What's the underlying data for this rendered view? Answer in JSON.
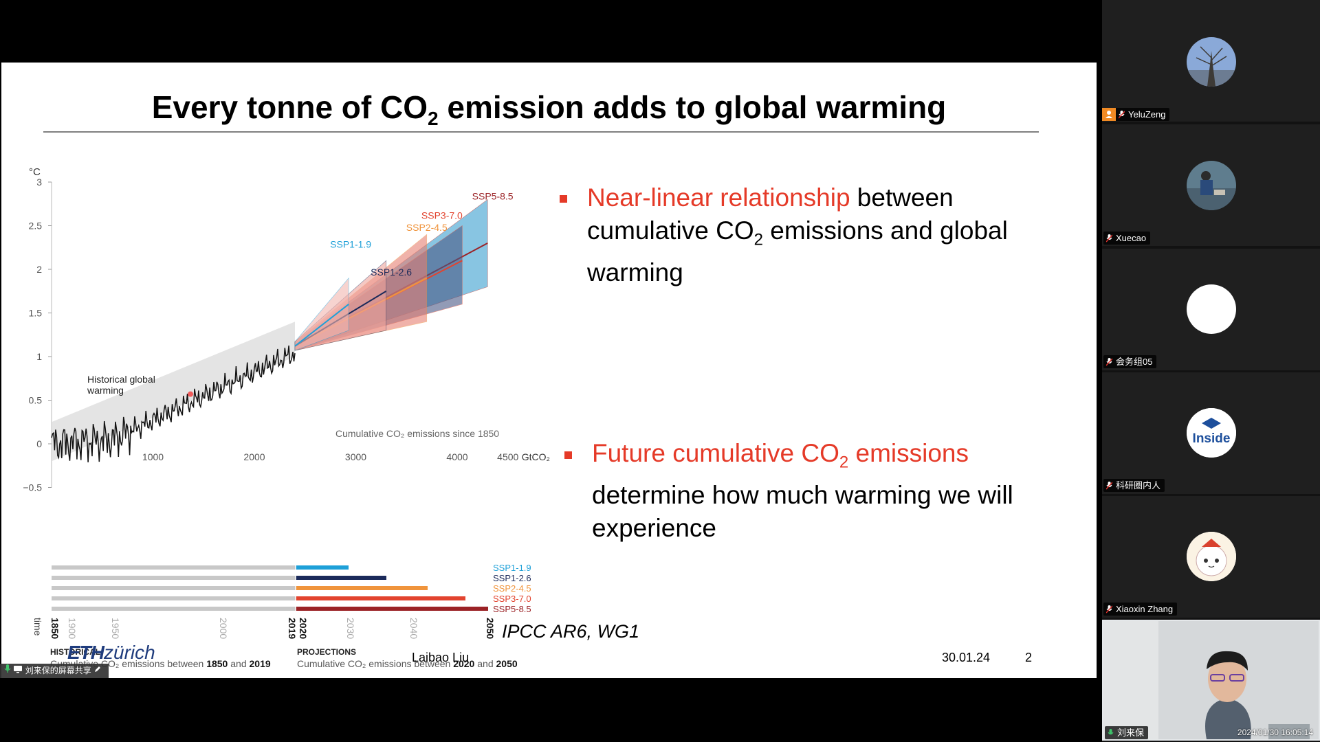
{
  "slide": {
    "title_pre": "Every tonne of CO",
    "title_sub": "2",
    "title_post": " emission adds to global warming",
    "bullet1": {
      "red": "Near-linear relationship",
      "rest1": " between",
      "line2_pre": "cumulative CO",
      "line2_sub": "2",
      "line2_post": " emissions and global",
      "line3": "warming"
    },
    "bullet2": {
      "red_pre": "Future cumulative CO",
      "red_sub": "2",
      "red_post": " emissions",
      "line2": "determine how much warming we will",
      "line3": "experience"
    },
    "citation": "IPCC AR6, WG1",
    "footer": {
      "logo_bold": "ETH",
      "logo_rest": "zürich",
      "author": "Laibao Liu",
      "date": "30.01.24",
      "page": "2"
    }
  },
  "chart_data": {
    "type": "line",
    "ylabel": "°C",
    "xlabel": "GtCO₂",
    "x_caption": "Cumulative CO₂ emissions since 1850",
    "xlim": [
      0,
      4500
    ],
    "ylim": [
      -0.5,
      3
    ],
    "x_ticks": [
      "1000",
      "2000",
      "3000",
      "4000",
      "4500"
    ],
    "y_ticks": [
      "−0.5",
      "0",
      "0.5",
      "1",
      "1.5",
      "2",
      "2.5",
      "3"
    ],
    "historical_label": "Historical global warming",
    "historical_label_l1": "Historical global",
    "historical_label_l2": "warming",
    "series": [
      {
        "name": "SSP1-1.9",
        "color": "#1ea0d8",
        "x_end": 2930,
        "y_end": 1.6,
        "low": 1.3,
        "high": 1.9
      },
      {
        "name": "SSP1-2.6",
        "color": "#1b2a5a",
        "x_end": 3300,
        "y_end": 1.75,
        "low": 1.3,
        "high": 2.1
      },
      {
        "name": "SSP2-4.5",
        "color": "#f0943c",
        "x_end": 3700,
        "y_end": 1.9,
        "low": 1.4,
        "high": 2.4
      },
      {
        "name": "SSP3-7.0",
        "color": "#e2432e",
        "x_end": 4050,
        "y_end": 2.1,
        "low": 1.6,
        "high": 2.5
      },
      {
        "name": "SSP5-8.5",
        "color": "#9b2226",
        "x_end": 4300,
        "y_end": 2.3,
        "low": 1.8,
        "high": 2.8
      }
    ],
    "timeline": {
      "time_label": "time",
      "years": [
        "1850",
        "1900",
        "1950",
        "2000",
        "2019",
        "2020",
        "2030",
        "2040",
        "2050"
      ],
      "historical_title": "HISTORICAL",
      "historical_caption_pre": "Cumulative CO₂ emissions between ",
      "historical_caption_a": "1850",
      "historical_caption_mid": " and ",
      "historical_caption_b": "2019",
      "projections_title": "PROJECTIONS",
      "projections_caption_pre": "Cumulative CO₂ emissions between ",
      "projections_caption_a": "2020",
      "projections_caption_mid": " and ",
      "projections_caption_b": "2050"
    }
  },
  "share_bar": {
    "label": "刘来保的屏幕共享"
  },
  "participants": [
    {
      "name": "YeluZeng",
      "avatar": "sky-photo",
      "host": true
    },
    {
      "name": "Xuecao",
      "avatar": "outdoor-photo"
    },
    {
      "name": "会务组05",
      "avatar": "blank-white"
    },
    {
      "name": "科研圈内人",
      "avatar": "insider-logo",
      "avatar_text": "Inside"
    },
    {
      "name": "Xiaoxin Zhang",
      "avatar": "cat-cartoon"
    }
  ],
  "video": {
    "name": "刘来保",
    "timestamp": "2024/01/30 16:05:14"
  }
}
